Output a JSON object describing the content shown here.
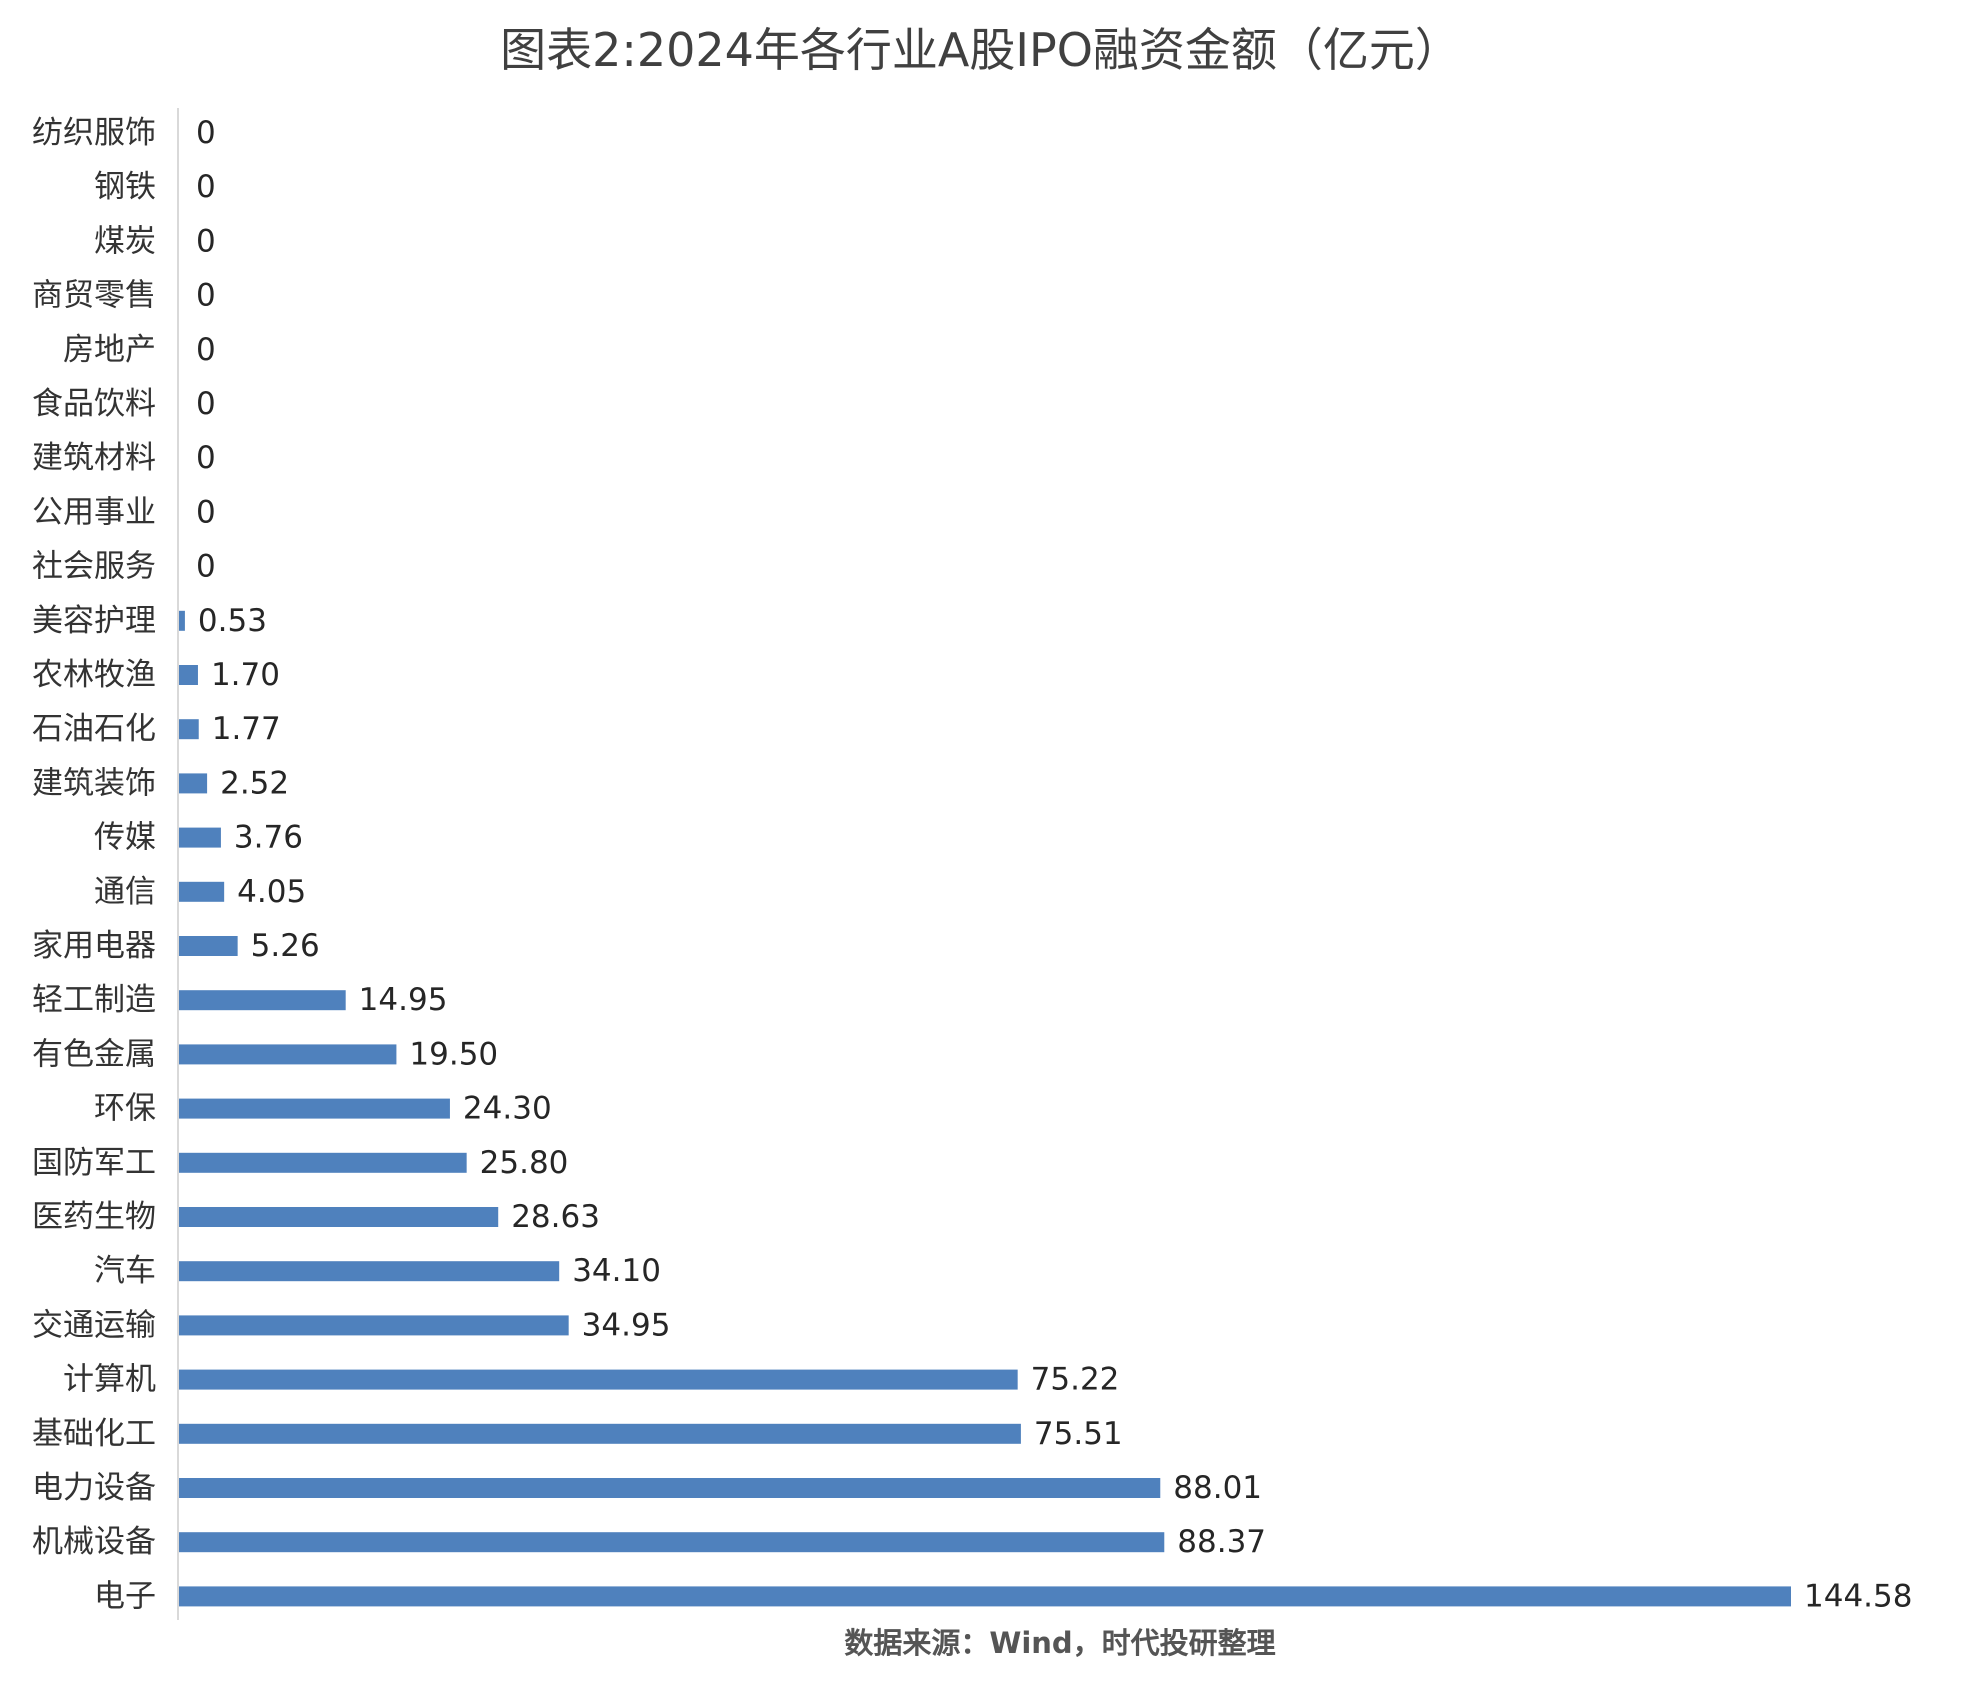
{
  "chart_data": {
    "type": "bar",
    "orientation": "horizontal",
    "title": "图表2:2024年各行业A股IPO融资金额（亿元）",
    "source": "数据来源：Wind，时代投研整理",
    "categories": [
      "纺织服饰",
      "钢铁",
      "煤炭",
      "商贸零售",
      "房地产",
      "食品饮料",
      "建筑材料",
      "公用事业",
      "社会服务",
      "美容护理",
      "农林牧渔",
      "石油石化",
      "建筑装饰",
      "传媒",
      "通信",
      "家用电器",
      "轻工制造",
      "有色金属",
      "环保",
      "国防军工",
      "医药生物",
      "汽车",
      "交通运输",
      "计算机",
      "基础化工",
      "电力设备",
      "机械设备",
      "电子"
    ],
    "values": [
      0,
      0,
      0,
      0,
      0,
      0,
      0,
      0,
      0,
      0.53,
      1.7,
      1.77,
      2.52,
      3.76,
      4.05,
      5.26,
      14.95,
      19.5,
      24.3,
      25.8,
      28.63,
      34.1,
      34.95,
      75.22,
      75.51,
      88.01,
      88.37,
      144.58
    ],
    "value_labels": [
      "0",
      "0",
      "0",
      "0",
      "0",
      "0",
      "0",
      "0",
      "0",
      "0.53",
      "1.70",
      "1.77",
      "2.52",
      "3.76",
      "4.05",
      "5.26",
      "14.95",
      "19.50",
      "24.30",
      "25.80",
      "28.63",
      "34.10",
      "34.95",
      "75.22",
      "75.51",
      "88.01",
      "88.37",
      "144.58"
    ],
    "xlim": [
      0,
      144.58
    ],
    "bar_color": "#4f81bd",
    "axis_color": "#d9d9d9",
    "grid": false,
    "legend": "none"
  }
}
